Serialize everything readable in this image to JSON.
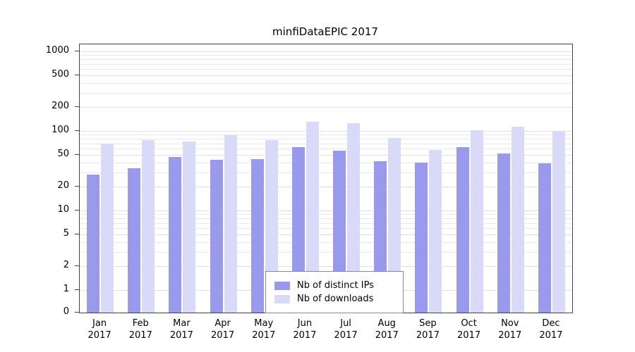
{
  "chart_data": {
    "type": "bar",
    "title": "minfiDataEPIC 2017",
    "categories": [
      "Jan",
      "Feb",
      "Mar",
      "Apr",
      "May",
      "Jun",
      "Jul",
      "Aug",
      "Sep",
      "Oct",
      "Nov",
      "Dec"
    ],
    "year_label": "2017",
    "series": [
      {
        "name": "Nb of distinct IPs",
        "color": "#9a9aec",
        "values": [
          28,
          34,
          47,
          43,
          44,
          62,
          57,
          42,
          40,
          63,
          52,
          39
        ]
      },
      {
        "name": "Nb of downloads",
        "color": "#d9d9f8",
        "values": [
          70,
          76,
          74,
          88,
          77,
          130,
          126,
          81,
          58,
          102,
          112,
          100
        ]
      }
    ],
    "y_ticks": [
      0,
      1,
      2,
      5,
      10,
      20,
      50,
      100,
      200,
      500,
      1000
    ],
    "y_scale": "log",
    "ylim": [
      0,
      1000
    ],
    "grid": "horizontal",
    "legend_position": "bottom-center",
    "xlabel": "",
    "ylabel": ""
  }
}
